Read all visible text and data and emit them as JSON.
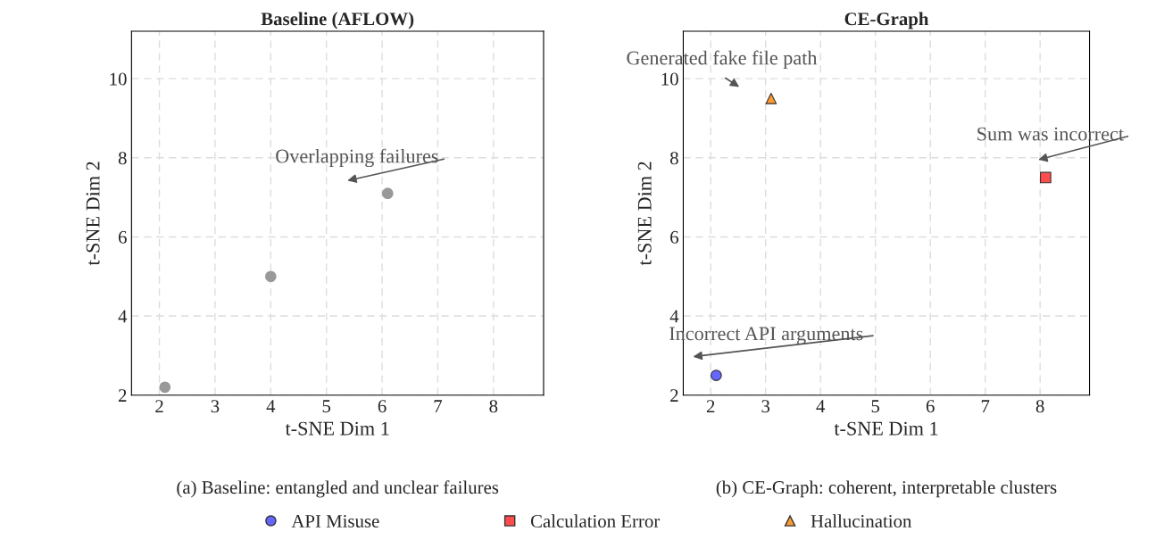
{
  "chart_data": [
    {
      "type": "scatter",
      "title": "Baseline (AFLOW)",
      "xlabel": "t-SNE Dim 1",
      "ylabel": "t-SNE Dim 2",
      "xlim": [
        1.5,
        8.9
      ],
      "ylim": [
        2,
        11.2
      ],
      "xticks": [
        2,
        3,
        4,
        5,
        6,
        7,
        8
      ],
      "yticks": [
        2,
        4,
        6,
        8,
        10
      ],
      "grid": true,
      "series": [
        {
          "color": "#999999",
          "marker": "circle",
          "x": [
            2.1,
            4,
            6.1
          ],
          "values": [
            2.2,
            5,
            7.1
          ]
        }
      ],
      "annotations": [
        "Overlapping failures",
        "(a) Baseline: entangled and unclear failures"
      ]
    },
    {
      "type": "scatter",
      "title": "CE-Graph",
      "xlabel": "t-SNE Dim 1",
      "ylabel": "t-SNE Dim 2",
      "xlim": [
        1.5,
        8.9
      ],
      "ylim": [
        2,
        11.2
      ],
      "xticks": [
        2,
        3,
        4,
        5,
        6,
        7,
        8
      ],
      "yticks": [
        2,
        4,
        6,
        8,
        10
      ],
      "grid": true,
      "legend": "bottom",
      "series": [
        {
          "name": "API Misuse",
          "color": "#6666ff",
          "marker": "circle",
          "x": [
            2.1
          ],
          "values": [
            2.5
          ]
        },
        {
          "name": "Calculation Error",
          "color": "#ff4d4d",
          "marker": "square",
          "x": [
            8.1
          ],
          "values": [
            7.5
          ]
        },
        {
          "name": "Hallucination",
          "color": "#ff9933",
          "marker": "triangle",
          "x": [
            3.1
          ],
          "values": [
            9.5
          ]
        }
      ],
      "annotations": [
        "Generated fake file path",
        "Sum was incorrect",
        "Incorrect API arguments",
        "(b) CE-Graph: coherent, interpretable clusters"
      ]
    }
  ]
}
